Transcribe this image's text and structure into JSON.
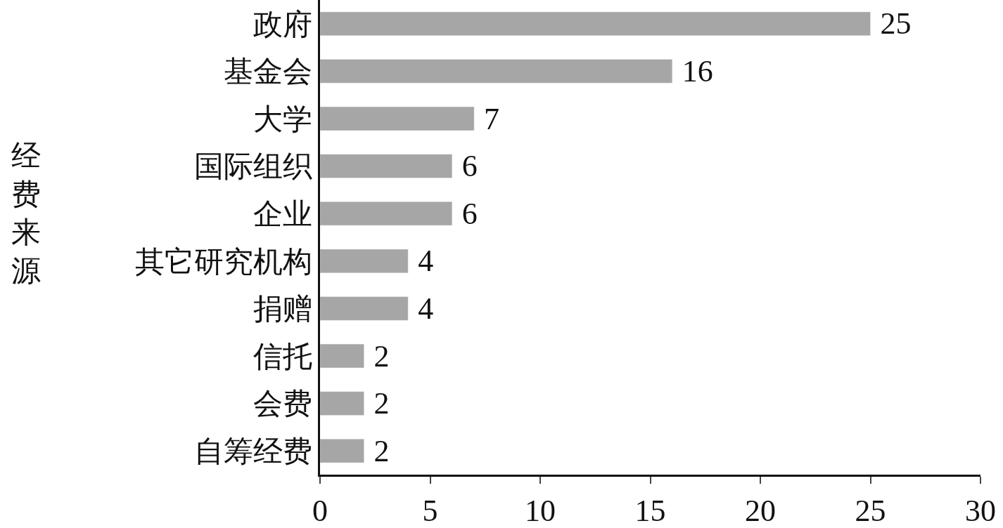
{
  "chart_data": {
    "type": "bar",
    "orientation": "horizontal",
    "ylabel": "经费来源",
    "categories": [
      "政府",
      "基金会",
      "大学",
      "国际组织",
      "企业",
      "其它研究机构",
      "捐赠",
      "信托",
      "会费",
      "自筹经费"
    ],
    "values": [
      25,
      16,
      7,
      6,
      6,
      4,
      4,
      2,
      2,
      2
    ],
    "color": "#a6a6a6",
    "data_labels": true,
    "xlim": [
      0,
      30
    ],
    "xticks": [
      0,
      5,
      10,
      15,
      20,
      25,
      30
    ],
    "legend": false
  }
}
